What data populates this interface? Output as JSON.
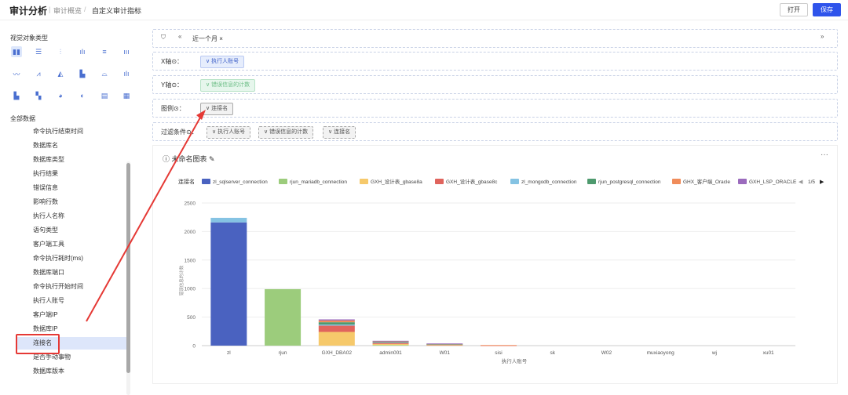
{
  "header": {
    "app_title": "审计分析",
    "breadcrumb": [
      "审计概览",
      "自定义审计指标"
    ],
    "open_label": "打开",
    "save_label": "保存"
  },
  "sidebar": {
    "chart_types_title": "视觉对象类型",
    "all_data_title": "全部数据",
    "fields": [
      "命令执行结束时间",
      "数据库名",
      "数据库类型",
      "执行结果",
      "错误信息",
      "影响行数",
      "执行人名称",
      "语句类型",
      "客户端工具",
      "命令执行耗时(ms)",
      "数据库端口",
      "命令执行开始时间",
      "执行人账号",
      "客户端IP",
      "数据库IP",
      "连接名",
      "是否手动事物",
      "数据库版本"
    ],
    "selected_field": "连接名"
  },
  "filterbar": {
    "time_chip": "近一个月 ×"
  },
  "config": {
    "x_label": "X轴⊙：",
    "x_chip": "∨ 执行人账号",
    "y_label": "Y轴⊙：",
    "y_chip": "∨ 错误信息的计数",
    "legend_label": "图例⊙：",
    "legend_chip": "∨ 连接名",
    "filter_label": "过滤条件⊙：",
    "filter_chips": [
      "∨ 执行人账号",
      "∨ 错误信息的计数",
      "∨ 连接名"
    ]
  },
  "chart_panel": {
    "title": "ⓘ 未命名图表 ✎",
    "more": "···",
    "legend_title": "连接名",
    "legend_page": "1/5"
  },
  "colors": {
    "accent": "#2f54eb",
    "arrow": "#e53935"
  },
  "chart_data": {
    "type": "bar",
    "stacked": true,
    "title": "",
    "xlabel": "执行人账号",
    "ylabel": "错误信息的计数",
    "ylim": [
      0,
      2500
    ],
    "yticks": [
      0,
      500,
      1000,
      1500,
      2000,
      2500
    ],
    "categories": [
      "zl",
      "rjun",
      "GXH_DBA02",
      "admin001",
      "W01",
      "sisi",
      "sk",
      "W02",
      "muxiaoyong",
      "wj",
      "xu01"
    ],
    "series": [
      {
        "name": "zl_sqlserver_connection",
        "color": "#4a62c0",
        "values": [
          2160,
          0,
          0,
          0,
          0,
          0,
          0,
          0,
          0,
          0,
          0
        ]
      },
      {
        "name": "rjun_mariadb_connection",
        "color": "#9ccc7c",
        "values": [
          0,
          990,
          0,
          10,
          0,
          0,
          0,
          0,
          0,
          0,
          0
        ]
      },
      {
        "name": "GXH_设计表_gbase8a",
        "color": "#f6c96b",
        "values": [
          0,
          0,
          240,
          20,
          10,
          0,
          0,
          0,
          0,
          0,
          0
        ]
      },
      {
        "name": "GXH_设计表_gbase8c",
        "color": "#e0645d",
        "values": [
          0,
          0,
          110,
          20,
          8,
          5,
          0,
          0,
          0,
          0,
          0
        ]
      },
      {
        "name": "zl_mongodb_connection",
        "color": "#85c3e3",
        "values": [
          80,
          0,
          20,
          10,
          5,
          0,
          0,
          0,
          0,
          0,
          0
        ]
      },
      {
        "name": "rjun_postgresql_connection",
        "color": "#4e9a6e",
        "values": [
          0,
          0,
          40,
          10,
          5,
          0,
          0,
          0,
          0,
          0,
          0
        ]
      },
      {
        "name": "GHX_客户端_Oracle",
        "color": "#f08c5a",
        "values": [
          0,
          0,
          30,
          10,
          5,
          5,
          0,
          0,
          0,
          0,
          0
        ]
      },
      {
        "name": "GXH_LSP_ORACLE",
        "color": "#9b6bbd",
        "values": [
          0,
          0,
          20,
          5,
          5,
          0,
          0,
          0,
          0,
          0,
          0
        ]
      }
    ]
  }
}
